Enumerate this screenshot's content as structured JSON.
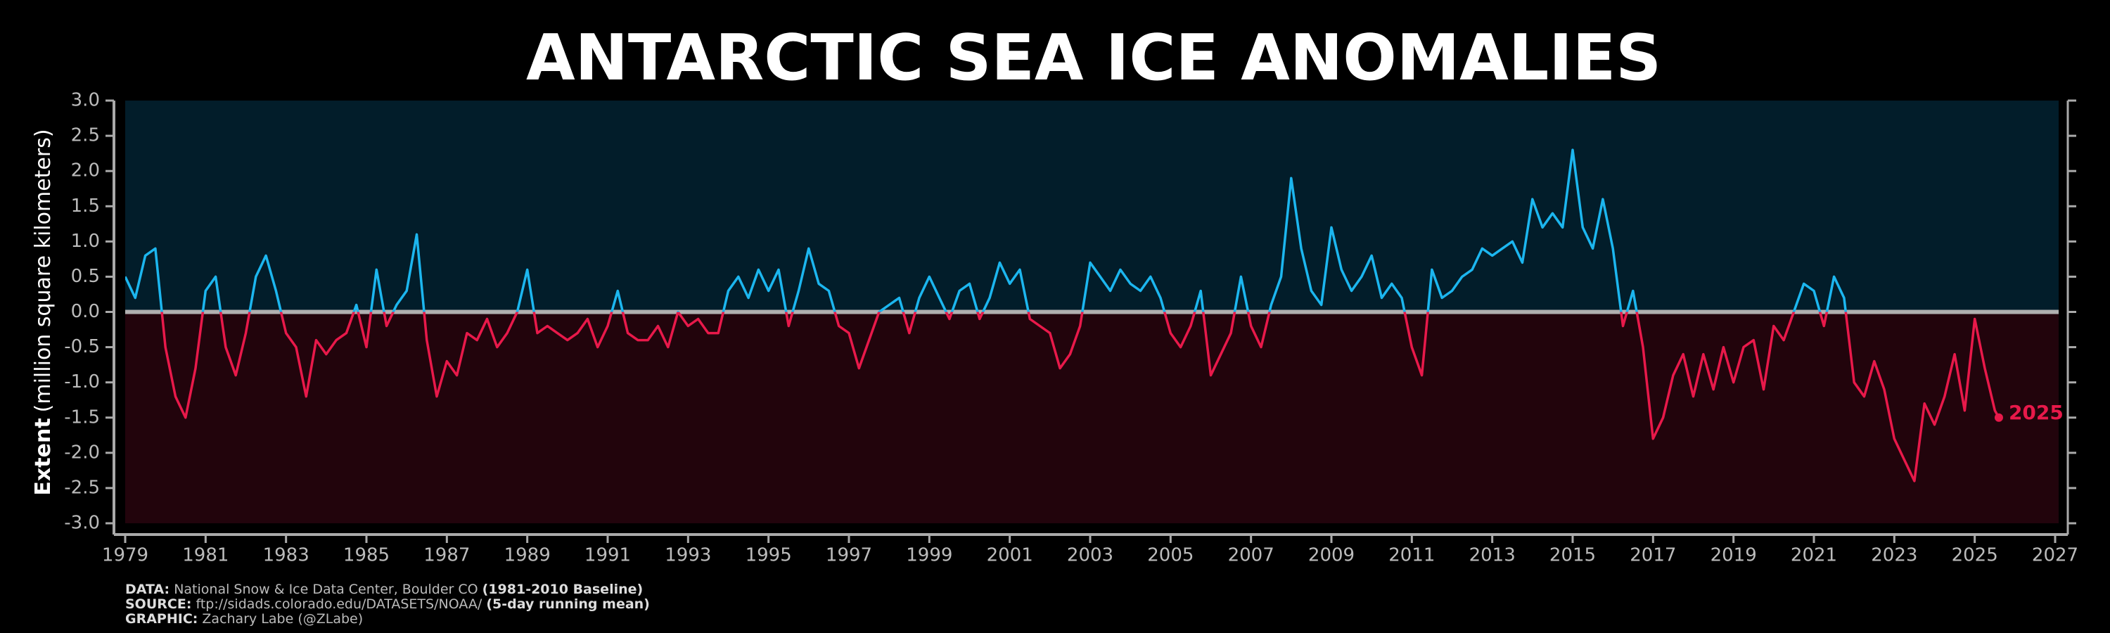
{
  "chart_data": {
    "type": "line",
    "title": "ANTARCTIC SEA ICE ANOMALIES",
    "y_label_bold": "Extent",
    "y_label": "(million square kilometers)",
    "end_label": "2025",
    "background_above": "#021d2a",
    "background_below": "#22040c",
    "zero_line": true,
    "series": [
      {
        "color_above": "#1cb6ef",
        "color_below": "#e8194a",
        "x": [
          1979,
          1979.25,
          1979.5,
          1979.75,
          1980,
          1980.25,
          1980.5,
          1980.75,
          1981,
          1981.25,
          1981.5,
          1981.75,
          1982,
          1982.25,
          1982.5,
          1982.75,
          1983,
          1983.25,
          1983.5,
          1983.75,
          1984,
          1984.25,
          1984.5,
          1984.75,
          1985,
          1985.25,
          1985.5,
          1985.75,
          1986,
          1986.25,
          1986.5,
          1986.75,
          1987,
          1987.25,
          1987.5,
          1987.75,
          1988,
          1988.25,
          1988.5,
          1988.75,
          1989,
          1989.25,
          1989.5,
          1989.75,
          1990,
          1990.25,
          1990.5,
          1990.75,
          1991,
          1991.25,
          1991.5,
          1991.75,
          1992,
          1992.25,
          1992.5,
          1992.75,
          1993,
          1993.25,
          1993.5,
          1993.75,
          1994,
          1994.25,
          1994.5,
          1994.75,
          1995,
          1995.25,
          1995.5,
          1995.75,
          1996,
          1996.25,
          1996.5,
          1996.75,
          1997,
          1997.25,
          1997.5,
          1997.75,
          1998,
          1998.25,
          1998.5,
          1998.75,
          1999,
          1999.25,
          1999.5,
          1999.75,
          2000,
          2000.25,
          2000.5,
          2000.75,
          2001,
          2001.25,
          2001.5,
          2001.75,
          2002,
          2002.25,
          2002.5,
          2002.75,
          2003,
          2003.25,
          2003.5,
          2003.75,
          2004,
          2004.25,
          2004.5,
          2004.75,
          2005,
          2005.25,
          2005.5,
          2005.75,
          2006,
          2006.25,
          2006.5,
          2006.75,
          2007,
          2007.25,
          2007.5,
          2007.75,
          2008,
          2008.25,
          2008.5,
          2008.75,
          2009,
          2009.25,
          2009.5,
          2009.75,
          2010,
          2010.25,
          2010.5,
          2010.75,
          2011,
          2011.25,
          2011.5,
          2011.75,
          2012,
          2012.25,
          2012.5,
          2012.75,
          2013,
          2013.25,
          2013.5,
          2013.75,
          2014,
          2014.25,
          2014.5,
          2014.75,
          2015,
          2015.25,
          2015.5,
          2015.75,
          2016,
          2016.25,
          2016.5,
          2016.75,
          2017,
          2017.25,
          2017.5,
          2017.75,
          2018,
          2018.25,
          2018.5,
          2018.75,
          2019,
          2019.25,
          2019.5,
          2019.75,
          2020,
          2020.25,
          2020.5,
          2020.75,
          2021,
          2021.25,
          2021.5,
          2021.75,
          2022,
          2022.25,
          2022.5,
          2022.75,
          2023,
          2023.25,
          2023.5,
          2023.75,
          2024,
          2024.25,
          2024.5,
          2024.75,
          2025,
          2025.25,
          2025.5,
          2025.6
        ],
        "values": [
          0.5,
          0.2,
          0.8,
          0.9,
          -0.5,
          -1.2,
          -1.5,
          -0.8,
          0.3,
          0.5,
          -0.5,
          -0.9,
          -0.3,
          0.5,
          0.8,
          0.3,
          -0.3,
          -0.5,
          -1.2,
          -0.4,
          -0.6,
          -0.4,
          -0.3,
          0.1,
          -0.5,
          0.6,
          -0.2,
          0.1,
          0.3,
          1.1,
          -0.4,
          -1.2,
          -0.7,
          -0.9,
          -0.3,
          -0.4,
          -0.1,
          -0.5,
          -0.3,
          0.0,
          0.6,
          -0.3,
          -0.2,
          -0.3,
          -0.4,
          -0.3,
          -0.1,
          -0.5,
          -0.2,
          0.3,
          -0.3,
          -0.4,
          -0.4,
          -0.2,
          -0.5,
          0.0,
          -0.2,
          -0.1,
          -0.3,
          -0.3,
          0.3,
          0.5,
          0.2,
          0.6,
          0.3,
          0.6,
          -0.2,
          0.3,
          0.9,
          0.4,
          0.3,
          -0.2,
          -0.3,
          -0.8,
          -0.4,
          0.0,
          0.1,
          0.2,
          -0.3,
          0.2,
          0.5,
          0.2,
          -0.1,
          0.3,
          0.4,
          -0.1,
          0.2,
          0.7,
          0.4,
          0.6,
          -0.1,
          -0.2,
          -0.3,
          -0.8,
          -0.6,
          -0.2,
          0.7,
          0.5,
          0.3,
          0.6,
          0.4,
          0.3,
          0.5,
          0.2,
          -0.3,
          -0.5,
          -0.2,
          0.3,
          -0.9,
          -0.6,
          -0.3,
          0.5,
          -0.2,
          -0.5,
          0.1,
          0.5,
          1.9,
          0.9,
          0.3,
          0.1,
          1.2,
          0.6,
          0.3,
          0.5,
          0.8,
          0.2,
          0.4,
          0.2,
          -0.5,
          -0.9,
          0.6,
          0.2,
          0.3,
          0.5,
          0.6,
          0.9,
          0.8,
          0.9,
          1.0,
          0.7,
          1.6,
          1.2,
          1.4,
          1.2,
          2.3,
          1.2,
          0.9,
          1.6,
          0.9,
          -0.2,
          0.3,
          -0.5,
          -1.8,
          -1.5,
          -0.9,
          -0.6,
          -1.2,
          -0.6,
          -1.1,
          -0.5,
          -1.0,
          -0.5,
          -0.4,
          -1.1,
          -0.2,
          -0.4,
          0.0,
          0.4,
          0.3,
          -0.2,
          0.5,
          0.2,
          -1.0,
          -1.2,
          -0.7,
          -1.1,
          -1.8,
          -2.1,
          -2.4,
          -1.3,
          -1.6,
          -1.2,
          -0.6,
          -1.4,
          -0.1,
          -0.8,
          -1.4,
          -1.5
        ]
      }
    ],
    "xlim": [
      1979,
      2027
    ],
    "xticks": [
      1979,
      1981,
      1983,
      1985,
      1987,
      1989,
      1991,
      1993,
      1995,
      1997,
      1999,
      2001,
      2003,
      2005,
      2007,
      2009,
      2011,
      2013,
      2015,
      2017,
      2019,
      2021,
      2023,
      2025,
      2027
    ],
    "ylim": [
      -3,
      3
    ],
    "yticks": [
      {
        "value": -3,
        "label": "-3.0"
      },
      -2.5,
      {
        "value": -2,
        "label": "-2.0"
      },
      -1.5,
      {
        "value": -1,
        "label": "-1.0"
      },
      -0.5,
      {
        "value": 0,
        "label": "0.0"
      },
      0.5,
      {
        "value": 1,
        "label": "1.0"
      },
      1.5,
      {
        "value": 2,
        "label": "2.0"
      },
      2.5,
      {
        "value": 3,
        "label": "3.0"
      }
    ],
    "credits": [
      {
        "label": "DATA:",
        "text": " National Snow & Ice Data Center, Boulder CO ",
        "note": "(1981-2010 Baseline)"
      },
      {
        "label": "SOURCE:",
        "text": " ftp://sidads.colorado.edu/DATASETS/NOAA/ ",
        "note": "(5-day running mean)"
      },
      {
        "label": "GRAPHIC:",
        "text": " Zachary Labe (@ZLabe)"
      }
    ]
  }
}
